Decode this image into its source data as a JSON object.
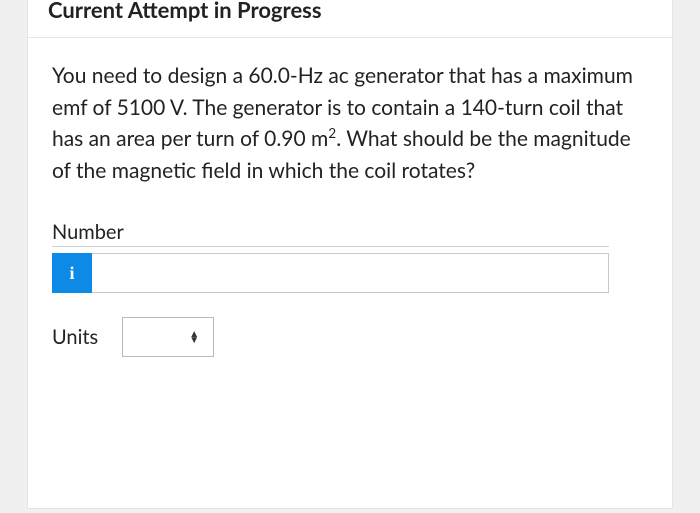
{
  "header": {
    "title": "Current Attempt in Progress"
  },
  "question": {
    "prefix": "You need to design a 60.0-Hz ac generator that has a maximum emf of 5100 V. The generator is to contain a 140-turn coil that has an area per turn of 0.90 m",
    "exponent": "2",
    "suffix": ". What should be the magnitude of the magnetic field in which the coil rotates?"
  },
  "answer": {
    "number_label": "Number",
    "info_icon": "i",
    "number_value": "",
    "number_placeholder": "",
    "units_label": "Units",
    "units_value": ""
  },
  "colors": {
    "info_bg": "#0d8ae6",
    "text": "#222222",
    "border": "#c8c8c8"
  }
}
